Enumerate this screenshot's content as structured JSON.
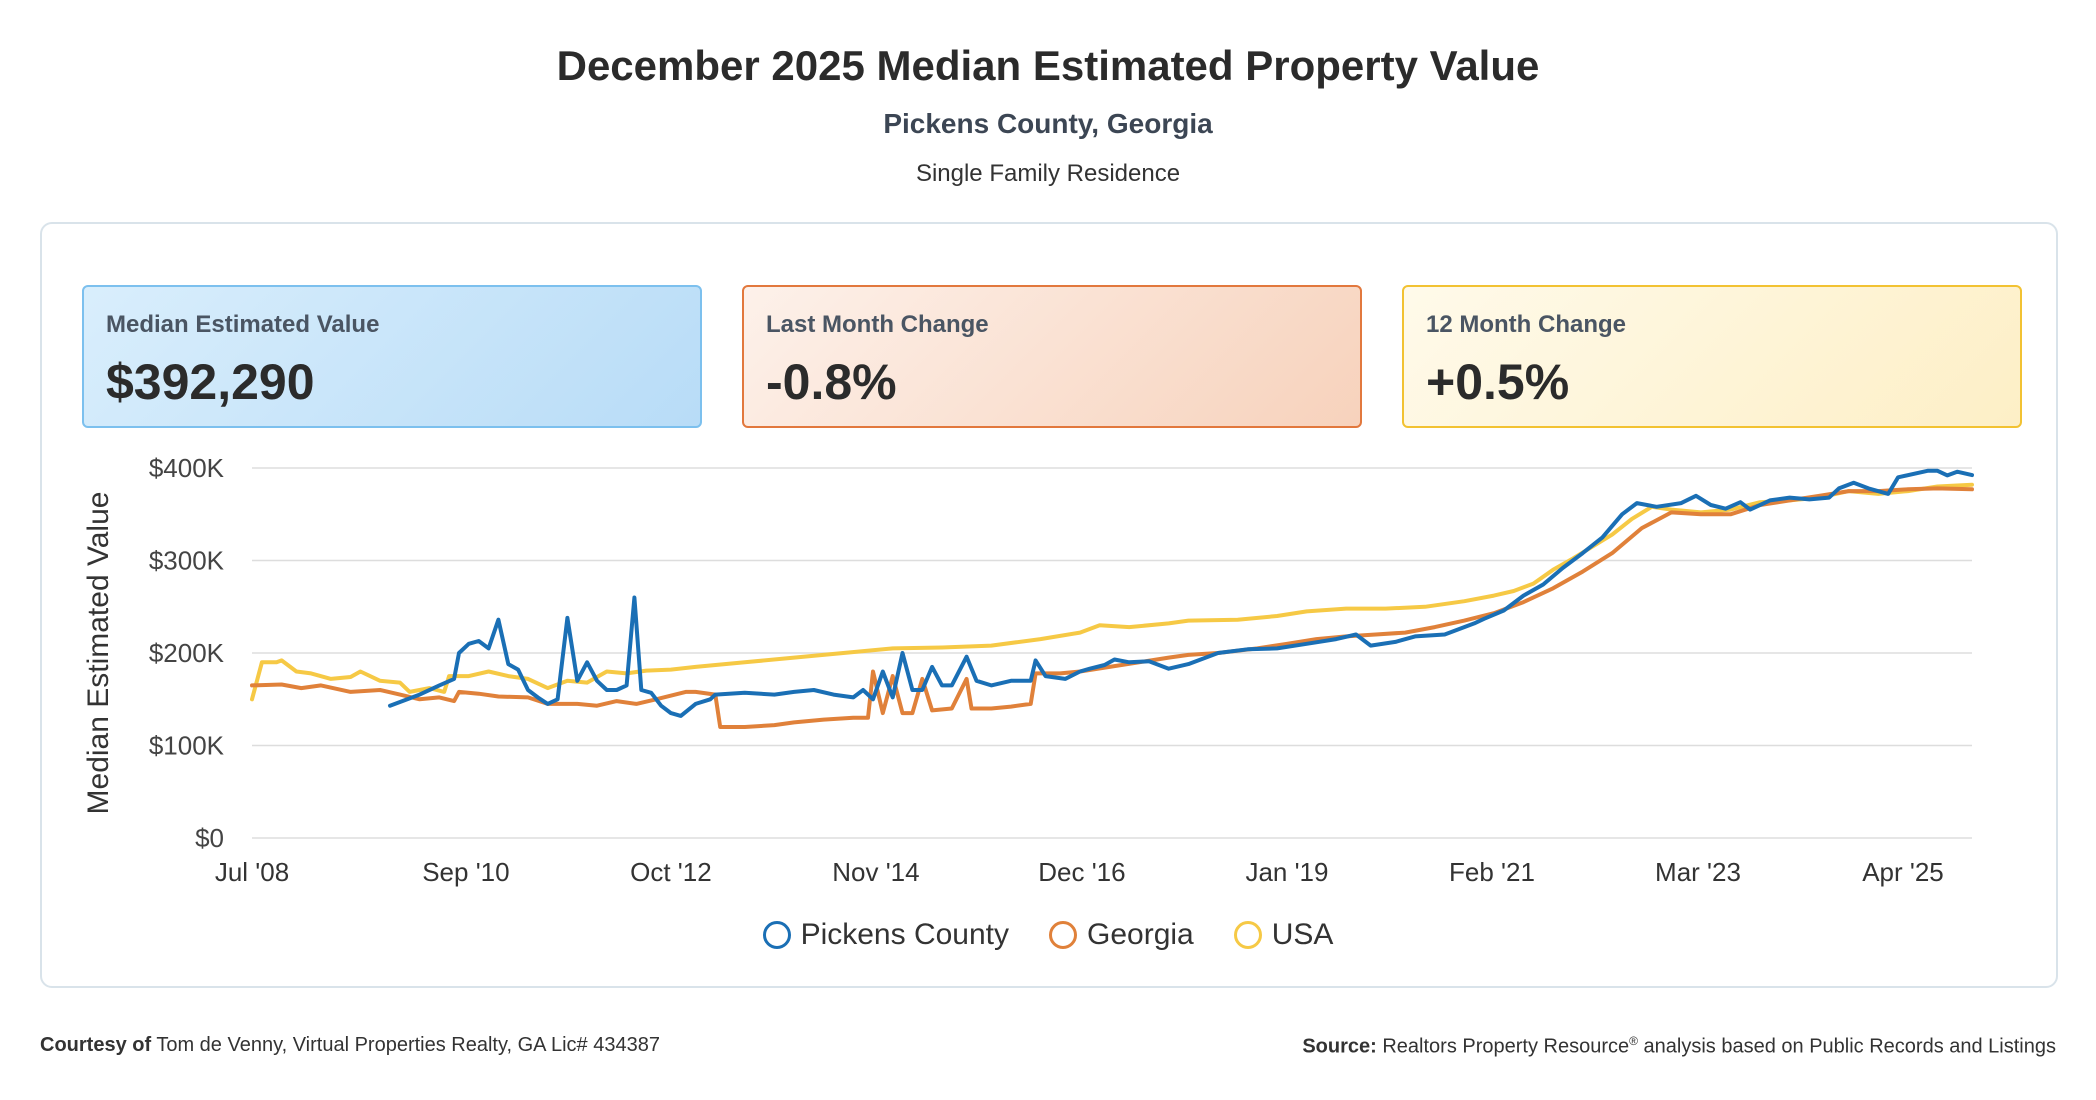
{
  "header": {
    "title": "December 2025 Median Estimated Property Value",
    "subtitle": "Pickens County, Georgia",
    "property_type": "Single Family Residence"
  },
  "cards": {
    "median": {
      "label": "Median Estimated Value",
      "value": "$392,290"
    },
    "last_month": {
      "label": "Last Month Change",
      "value": "-0.8%"
    },
    "twelve_month": {
      "label": "12 Month Change",
      "value": "+0.5%"
    }
  },
  "colors": {
    "pickens": "#1a6fb5",
    "georgia": "#e0813a",
    "usa": "#f6c945",
    "grid": "#dddddd",
    "axis_text": "#444444"
  },
  "footer": {
    "courtesy_label": "Courtesy of",
    "courtesy_text": "Tom de Venny, Virtual Properties Realty, GA Lic# 434387",
    "source_label": "Source:",
    "source_text_1": "Realtors Property Resource",
    "source_reg": "®",
    "source_text_2": "analysis based on Public Records and Listings"
  },
  "chart_data": {
    "type": "line",
    "title": "December 2025 Median Estimated Property Value",
    "xlabel": "",
    "ylabel": "Median Estimated Value",
    "ylim": [
      0,
      400000
    ],
    "xlim": [
      2008.5,
      2025.95
    ],
    "y_ticks": [
      {
        "value": 0,
        "label": "$0"
      },
      {
        "value": 100000,
        "label": "$100K"
      },
      {
        "value": 200000,
        "label": "$200K"
      },
      {
        "value": 300000,
        "label": "$300K"
      },
      {
        "value": 400000,
        "label": "$400K"
      }
    ],
    "x_ticks": [
      {
        "value": 2008.5,
        "label": "Jul '08"
      },
      {
        "value": 2010.67,
        "label": "Sep '10"
      },
      {
        "value": 2012.75,
        "label": "Oct '12"
      },
      {
        "value": 2014.83,
        "label": "Nov '14"
      },
      {
        "value": 2016.92,
        "label": "Dec '16"
      },
      {
        "value": 2019.0,
        "label": "Jan '19"
      },
      {
        "value": 2021.08,
        "label": "Feb '21"
      },
      {
        "value": 2023.17,
        "label": "Mar '23"
      },
      {
        "value": 2025.25,
        "label": "Apr '25"
      }
    ],
    "grid": true,
    "legend": "bottom-center",
    "series": [
      {
        "name": "Pickens County",
        "color": "#1a6fb5",
        "points": [
          [
            2009.9,
            143000
          ],
          [
            2010.2,
            155000
          ],
          [
            2010.4,
            165000
          ],
          [
            2010.55,
            172000
          ],
          [
            2010.6,
            200000
          ],
          [
            2010.7,
            210000
          ],
          [
            2010.8,
            213000
          ],
          [
            2010.9,
            205000
          ],
          [
            2011.0,
            236000
          ],
          [
            2011.1,
            188000
          ],
          [
            2011.2,
            182000
          ],
          [
            2011.3,
            160000
          ],
          [
            2011.4,
            152000
          ],
          [
            2011.5,
            145000
          ],
          [
            2011.6,
            150000
          ],
          [
            2011.7,
            238000
          ],
          [
            2011.8,
            170000
          ],
          [
            2011.9,
            190000
          ],
          [
            2012.0,
            170000
          ],
          [
            2012.1,
            160000
          ],
          [
            2012.2,
            160000
          ],
          [
            2012.3,
            165000
          ],
          [
            2012.38,
            260000
          ],
          [
            2012.45,
            160000
          ],
          [
            2012.55,
            157000
          ],
          [
            2012.65,
            143000
          ],
          [
            2012.75,
            135000
          ],
          [
            2012.85,
            132000
          ],
          [
            2013.0,
            145000
          ],
          [
            2013.15,
            150000
          ],
          [
            2013.2,
            155000
          ],
          [
            2013.5,
            157000
          ],
          [
            2013.8,
            155000
          ],
          [
            2014.0,
            158000
          ],
          [
            2014.2,
            160000
          ],
          [
            2014.4,
            155000
          ],
          [
            2014.6,
            152000
          ],
          [
            2014.7,
            160000
          ],
          [
            2014.8,
            150000
          ],
          [
            2014.9,
            180000
          ],
          [
            2015.0,
            152000
          ],
          [
            2015.1,
            200000
          ],
          [
            2015.2,
            160000
          ],
          [
            2015.3,
            160000
          ],
          [
            2015.4,
            185000
          ],
          [
            2015.5,
            165000
          ],
          [
            2015.6,
            165000
          ],
          [
            2015.75,
            196000
          ],
          [
            2015.85,
            170000
          ],
          [
            2016.0,
            165000
          ],
          [
            2016.2,
            170000
          ],
          [
            2016.4,
            170000
          ],
          [
            2016.45,
            192000
          ],
          [
            2016.55,
            175000
          ],
          [
            2016.75,
            172000
          ],
          [
            2016.9,
            180000
          ],
          [
            2017.0,
            183000
          ],
          [
            2017.15,
            187000
          ],
          [
            2017.25,
            193000
          ],
          [
            2017.4,
            190000
          ],
          [
            2017.6,
            191000
          ],
          [
            2017.8,
            183000
          ],
          [
            2018.0,
            188000
          ],
          [
            2018.3,
            200000
          ],
          [
            2018.6,
            204000
          ],
          [
            2018.9,
            205000
          ],
          [
            2019.2,
            210000
          ],
          [
            2019.5,
            215000
          ],
          [
            2019.7,
            220000
          ],
          [
            2019.85,
            208000
          ],
          [
            2020.1,
            212000
          ],
          [
            2020.3,
            218000
          ],
          [
            2020.6,
            220000
          ],
          [
            2020.9,
            232000
          ],
          [
            2021.0,
            237000
          ],
          [
            2021.2,
            246000
          ],
          [
            2021.4,
            262000
          ],
          [
            2021.6,
            274000
          ],
          [
            2021.8,
            292000
          ],
          [
            2022.0,
            308000
          ],
          [
            2022.2,
            325000
          ],
          [
            2022.4,
            350000
          ],
          [
            2022.55,
            362000
          ],
          [
            2022.75,
            358000
          ],
          [
            2023.0,
            362000
          ],
          [
            2023.15,
            370000
          ],
          [
            2023.3,
            360000
          ],
          [
            2023.45,
            356000
          ],
          [
            2023.6,
            363000
          ],
          [
            2023.7,
            355000
          ],
          [
            2023.9,
            365000
          ],
          [
            2024.1,
            368000
          ],
          [
            2024.3,
            366000
          ],
          [
            2024.5,
            368000
          ],
          [
            2024.6,
            378000
          ],
          [
            2024.75,
            384000
          ],
          [
            2024.9,
            378000
          ],
          [
            2025.1,
            372000
          ],
          [
            2025.2,
            390000
          ],
          [
            2025.5,
            397000
          ],
          [
            2025.6,
            397000
          ],
          [
            2025.7,
            392000
          ],
          [
            2025.8,
            396000
          ],
          [
            2025.95,
            392290
          ]
        ]
      },
      {
        "name": "Georgia",
        "color": "#e0813a",
        "points": [
          [
            2008.5,
            165000
          ],
          [
            2008.8,
            166000
          ],
          [
            2009.0,
            162000
          ],
          [
            2009.2,
            165000
          ],
          [
            2009.5,
            158000
          ],
          [
            2009.8,
            160000
          ],
          [
            2010.0,
            155000
          ],
          [
            2010.2,
            150000
          ],
          [
            2010.4,
            152000
          ],
          [
            2010.55,
            148000
          ],
          [
            2010.6,
            158000
          ],
          [
            2010.8,
            156000
          ],
          [
            2011.0,
            153000
          ],
          [
            2011.3,
            152000
          ],
          [
            2011.5,
            145000
          ],
          [
            2011.8,
            145000
          ],
          [
            2012.0,
            143000
          ],
          [
            2012.2,
            148000
          ],
          [
            2012.4,
            145000
          ],
          [
            2012.6,
            150000
          ],
          [
            2012.9,
            158000
          ],
          [
            2013.0,
            158000
          ],
          [
            2013.2,
            155000
          ],
          [
            2013.25,
            120000
          ],
          [
            2013.5,
            120000
          ],
          [
            2013.8,
            122000
          ],
          [
            2014.0,
            125000
          ],
          [
            2014.3,
            128000
          ],
          [
            2014.6,
            130000
          ],
          [
            2014.75,
            130000
          ],
          [
            2014.8,
            180000
          ],
          [
            2014.9,
            135000
          ],
          [
            2015.0,
            175000
          ],
          [
            2015.1,
            135000
          ],
          [
            2015.2,
            135000
          ],
          [
            2015.3,
            172000
          ],
          [
            2015.4,
            138000
          ],
          [
            2015.6,
            140000
          ],
          [
            2015.75,
            172000
          ],
          [
            2015.8,
            140000
          ],
          [
            2016.0,
            140000
          ],
          [
            2016.2,
            142000
          ],
          [
            2016.4,
            145000
          ],
          [
            2016.45,
            178000
          ],
          [
            2016.7,
            178000
          ],
          [
            2016.9,
            180000
          ],
          [
            2017.2,
            185000
          ],
          [
            2017.5,
            190000
          ],
          [
            2017.8,
            195000
          ],
          [
            2018.0,
            198000
          ],
          [
            2018.3,
            200000
          ],
          [
            2018.7,
            205000
          ],
          [
            2019.0,
            210000
          ],
          [
            2019.3,
            215000
          ],
          [
            2019.6,
            218000
          ],
          [
            2019.9,
            220000
          ],
          [
            2020.2,
            222000
          ],
          [
            2020.5,
            228000
          ],
          [
            2020.8,
            235000
          ],
          [
            2021.1,
            243000
          ],
          [
            2021.4,
            255000
          ],
          [
            2021.7,
            270000
          ],
          [
            2022.0,
            288000
          ],
          [
            2022.3,
            308000
          ],
          [
            2022.6,
            335000
          ],
          [
            2022.9,
            352000
          ],
          [
            2023.2,
            350000
          ],
          [
            2023.5,
            350000
          ],
          [
            2023.8,
            360000
          ],
          [
            2024.1,
            365000
          ],
          [
            2024.4,
            370000
          ],
          [
            2024.7,
            375000
          ],
          [
            2025.0,
            375000
          ],
          [
            2025.3,
            377000
          ],
          [
            2025.6,
            378000
          ],
          [
            2025.95,
            377000
          ]
        ]
      },
      {
        "name": "USA",
        "color": "#f6c945",
        "points": [
          [
            2008.5,
            150000
          ],
          [
            2008.6,
            190000
          ],
          [
            2008.75,
            190000
          ],
          [
            2008.8,
            192000
          ],
          [
            2008.95,
            180000
          ],
          [
            2009.1,
            178000
          ],
          [
            2009.3,
            172000
          ],
          [
            2009.5,
            174000
          ],
          [
            2009.6,
            180000
          ],
          [
            2009.8,
            170000
          ],
          [
            2010.0,
            168000
          ],
          [
            2010.1,
            158000
          ],
          [
            2010.3,
            162000
          ],
          [
            2010.45,
            158000
          ],
          [
            2010.5,
            175000
          ],
          [
            2010.7,
            175000
          ],
          [
            2010.9,
            180000
          ],
          [
            2011.1,
            175000
          ],
          [
            2011.3,
            172000
          ],
          [
            2011.5,
            162000
          ],
          [
            2011.7,
            170000
          ],
          [
            2011.9,
            168000
          ],
          [
            2012.1,
            180000
          ],
          [
            2012.3,
            178000
          ],
          [
            2012.5,
            181000
          ],
          [
            2012.75,
            182000
          ],
          [
            2013.0,
            185000
          ],
          [
            2013.5,
            190000
          ],
          [
            2014.0,
            195000
          ],
          [
            2014.5,
            200000
          ],
          [
            2015.0,
            205000
          ],
          [
            2015.5,
            206000
          ],
          [
            2016.0,
            208000
          ],
          [
            2016.5,
            215000
          ],
          [
            2016.9,
            222000
          ],
          [
            2017.1,
            230000
          ],
          [
            2017.4,
            228000
          ],
          [
            2017.8,
            232000
          ],
          [
            2018.0,
            235000
          ],
          [
            2018.5,
            236000
          ],
          [
            2018.9,
            240000
          ],
          [
            2019.2,
            245000
          ],
          [
            2019.6,
            248000
          ],
          [
            2020.0,
            248000
          ],
          [
            2020.4,
            250000
          ],
          [
            2020.8,
            256000
          ],
          [
            2021.1,
            262000
          ],
          [
            2021.3,
            267000
          ],
          [
            2021.5,
            275000
          ],
          [
            2021.7,
            290000
          ],
          [
            2021.9,
            302000
          ],
          [
            2022.1,
            315000
          ],
          [
            2022.3,
            328000
          ],
          [
            2022.5,
            345000
          ],
          [
            2022.7,
            358000
          ],
          [
            2022.9,
            355000
          ],
          [
            2023.2,
            352000
          ],
          [
            2023.5,
            355000
          ],
          [
            2023.8,
            363000
          ],
          [
            2024.1,
            365000
          ],
          [
            2024.4,
            368000
          ],
          [
            2024.7,
            375000
          ],
          [
            2025.0,
            372000
          ],
          [
            2025.3,
            375000
          ],
          [
            2025.6,
            380000
          ],
          [
            2025.95,
            382000
          ]
        ]
      }
    ]
  }
}
